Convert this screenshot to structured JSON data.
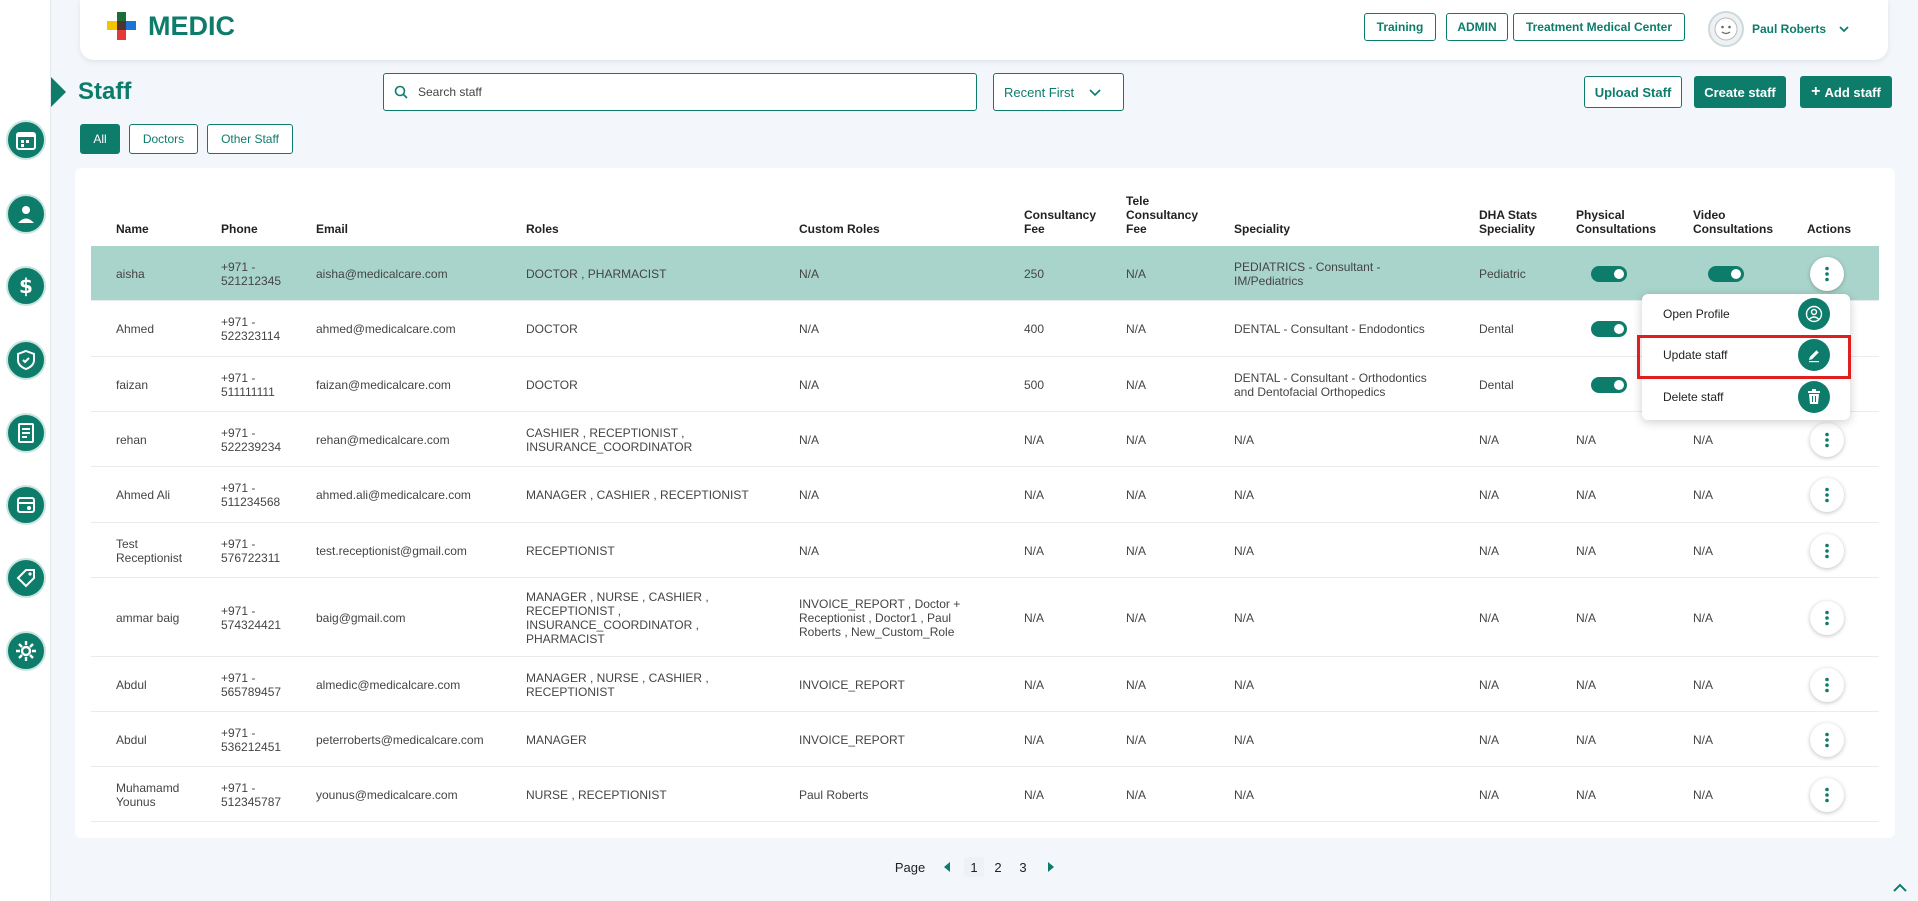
{
  "app": {
    "name": "MEDIC"
  },
  "header": {
    "buttons": [
      "Training",
      "ADMIN",
      "Treatment Medical Center"
    ],
    "user_name": "Paul Roberts"
  },
  "sidebar": {
    "items": [
      "calendar-icon",
      "doctor-icon",
      "dollar-icon",
      "insurance-icon",
      "report-icon",
      "billing-icon",
      "tag-icon",
      "settings-icon"
    ]
  },
  "page": {
    "title": "Staff",
    "search_placeholder": "Search staff",
    "sort_label": "Recent First",
    "upload_label": "Upload Staff",
    "create_label": "Create staff",
    "add_label": "Add staff",
    "filters": [
      "All",
      "Doctors",
      "Other Staff"
    ]
  },
  "table": {
    "headers": {
      "name": "Name",
      "phone": "Phone",
      "email": "Email",
      "roles": "Roles",
      "custom_roles": "Custom Roles",
      "fee1": "Consultancy",
      "fee2": "Fee",
      "tele1": "Tele",
      "tele2": "Consultancy",
      "tele3": "Fee",
      "speciality": "Speciality",
      "dha1": "DHA Stats",
      "dha2": "Speciality",
      "phys1": "Physical",
      "phys2": "Consultations",
      "video1": "Video",
      "video2": "Consultations",
      "actions": "Actions"
    },
    "rows": [
      {
        "name": [
          "aisha"
        ],
        "phone": [
          "+971 -",
          "521212345"
        ],
        "email": "aisha@medicalcare.com",
        "roles": [
          "DOCTOR , PHARMACIST"
        ],
        "custom": [
          "N/A"
        ],
        "fee": "250",
        "tele": "N/A",
        "spec": [
          "PEDIATRICS - Consultant -",
          "IM/Pediatrics"
        ],
        "dha": "Pediatric",
        "phys": "toggle",
        "video": "toggle"
      },
      {
        "name": [
          "Ahmed"
        ],
        "phone": [
          "+971 -",
          "522323114"
        ],
        "email": "ahmed@medicalcare.com",
        "roles": [
          "DOCTOR"
        ],
        "custom": [
          "N/A"
        ],
        "fee": "400",
        "tele": "N/A",
        "spec": [
          "DENTAL - Consultant - Endodontics"
        ],
        "dha": "Dental",
        "phys": "toggle",
        "video": ""
      },
      {
        "name": [
          "faizan"
        ],
        "phone": [
          "+971 -",
          "511111111"
        ],
        "email": "faizan@medicalcare.com",
        "roles": [
          "DOCTOR"
        ],
        "custom": [
          "N/A"
        ],
        "fee": "500",
        "tele": "N/A",
        "spec": [
          "DENTAL - Consultant - Orthodontics",
          "and Dentofacial Orthopedics"
        ],
        "dha": "Dental",
        "phys": "toggle",
        "video": ""
      },
      {
        "name": [
          "rehan"
        ],
        "phone": [
          "+971 -",
          "522239234"
        ],
        "email": "rehan@medicalcare.com",
        "roles": [
          "CASHIER , RECEPTIONIST ,",
          "INSURANCE_COORDINATOR"
        ],
        "custom": [
          "N/A"
        ],
        "fee": "N/A",
        "tele": "N/A",
        "spec": [
          "N/A"
        ],
        "dha": "N/A",
        "phys": "N/A",
        "video": "N/A"
      },
      {
        "name": [
          "Ahmed Ali"
        ],
        "phone": [
          "+971 -",
          "511234568"
        ],
        "email": "ahmed.ali@medicalcare.com",
        "roles": [
          "MANAGER , CASHIER , RECEPTIONIST"
        ],
        "custom": [
          "N/A"
        ],
        "fee": "N/A",
        "tele": "N/A",
        "spec": [
          "N/A"
        ],
        "dha": "N/A",
        "phys": "N/A",
        "video": "N/A"
      },
      {
        "name": [
          "Test",
          "Receptionist"
        ],
        "phone": [
          "+971 -",
          "576722311"
        ],
        "email": "test.receptionist@gmail.com",
        "roles": [
          "RECEPTIONIST"
        ],
        "custom": [
          "N/A"
        ],
        "fee": "N/A",
        "tele": "N/A",
        "spec": [
          "N/A"
        ],
        "dha": "N/A",
        "phys": "N/A",
        "video": "N/A"
      },
      {
        "name": [
          "ammar baig"
        ],
        "phone": [
          "+971 -",
          "574324421"
        ],
        "email": "baig@gmail.com",
        "roles": [
          "MANAGER , NURSE , CASHIER ,",
          "RECEPTIONIST ,",
          "INSURANCE_COORDINATOR ,",
          "PHARMACIST"
        ],
        "custom": [
          "INVOICE_REPORT , Doctor +",
          "Receptionist , Doctor1 , Paul",
          "Roberts , New_Custom_Role"
        ],
        "fee": "N/A",
        "tele": "N/A",
        "spec": [
          "N/A"
        ],
        "dha": "N/A",
        "phys": "N/A",
        "video": "N/A"
      },
      {
        "name": [
          "Abdul"
        ],
        "phone": [
          "+971 -",
          "565789457"
        ],
        "email": "almedic@medicalcare.com",
        "roles": [
          "MANAGER , NURSE , CASHIER ,",
          "RECEPTIONIST"
        ],
        "custom": [
          "INVOICE_REPORT"
        ],
        "fee": "N/A",
        "tele": "N/A",
        "spec": [
          "N/A"
        ],
        "dha": "N/A",
        "phys": "N/A",
        "video": "N/A"
      },
      {
        "name": [
          "Abdul"
        ],
        "phone": [
          "+971 -",
          "536212451"
        ],
        "email": "peterroberts@medicalcare.com",
        "roles": [
          "MANAGER"
        ],
        "custom": [
          "INVOICE_REPORT"
        ],
        "fee": "N/A",
        "tele": "N/A",
        "spec": [
          "N/A"
        ],
        "dha": "N/A",
        "phys": "N/A",
        "video": "N/A"
      },
      {
        "name": [
          "Muhamamd",
          "Younus"
        ],
        "phone": [
          "+971 -",
          "512345787"
        ],
        "email": "younus@medicalcare.com",
        "roles": [
          "NURSE , RECEPTIONIST"
        ],
        "custom": [
          "Paul Roberts"
        ],
        "fee": "N/A",
        "tele": "N/A",
        "spec": [
          "N/A"
        ],
        "dha": "N/A",
        "phys": "N/A",
        "video": "N/A"
      }
    ]
  },
  "menu": {
    "items": [
      "Open Profile",
      "Update staff",
      "Delete staff"
    ]
  },
  "pagination": {
    "label": "Page",
    "pages": [
      "1",
      "2",
      "3"
    ],
    "current": "1"
  },
  "colors": {
    "brand": "#0e7c6b",
    "highlight_row": "#a9d4cc",
    "annotation": "#e01e1e"
  }
}
